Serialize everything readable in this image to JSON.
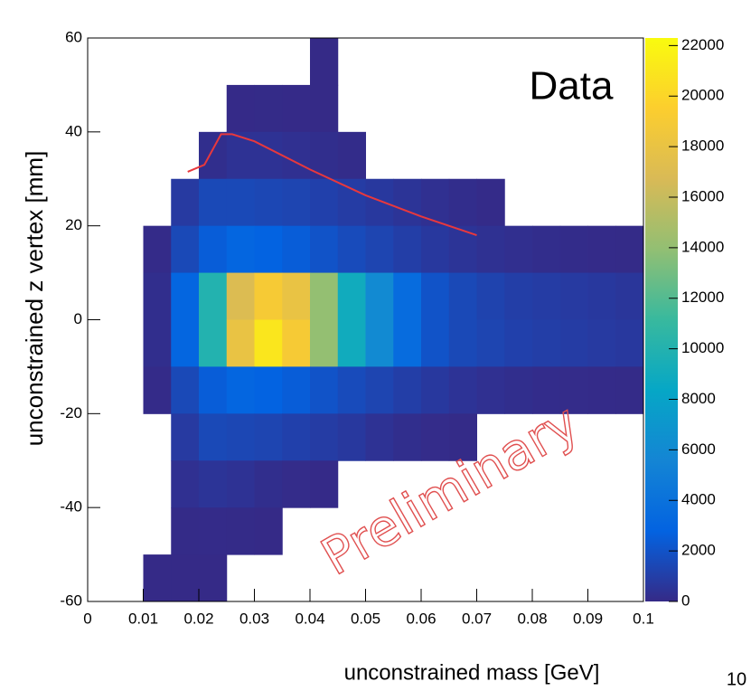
{
  "chart_data": {
    "type": "heatmap",
    "xlabel": "unconstrained mass [GeV]",
    "ylabel": "unconstrained z vertex [mm]",
    "annotation": "Data",
    "watermark": "Preliminary",
    "page_number": "10",
    "xlim": [
      0,
      0.1
    ],
    "xticks": [
      0,
      0.01,
      0.02,
      0.03,
      0.04,
      0.05,
      0.06,
      0.07,
      0.08,
      0.09,
      0.1
    ],
    "ylim": [
      -60,
      60
    ],
    "yticks": [
      -60,
      -40,
      -20,
      0,
      20,
      40,
      60
    ],
    "zlim": [
      0,
      22300
    ],
    "zticks": [
      0,
      2000,
      4000,
      6000,
      8000,
      10000,
      12000,
      14000,
      16000,
      18000,
      20000,
      22000
    ],
    "colormap": [
      "#352a87",
      "#0363e1",
      "#1485d4",
      "#06a7c6",
      "#38b99e",
      "#92bf73",
      "#d9ba56",
      "#fcce2e",
      "#f9fb0e"
    ],
    "xbins": [
      0,
      0.005,
      0.01,
      0.015,
      0.02,
      0.025,
      0.03,
      0.035,
      0.04,
      0.045,
      0.05,
      0.055,
      0.06,
      0.065,
      0.07,
      0.075,
      0.08,
      0.085,
      0.09,
      0.095,
      0.1
    ],
    "ybins": [
      60,
      50,
      40,
      30,
      20,
      10,
      0,
      -10,
      -20,
      -30,
      -40,
      -50,
      -60
    ],
    "z": [
      [
        0,
        0,
        0,
        0,
        0,
        0,
        0,
        0,
        1,
        0,
        0,
        0,
        0,
        0,
        0,
        0,
        0,
        0,
        0,
        0
      ],
      [
        0,
        0,
        0,
        0,
        0,
        20,
        30,
        20,
        10,
        0,
        0,
        0,
        0,
        0,
        0,
        0,
        0,
        0,
        0,
        0
      ],
      [
        0,
        0,
        0,
        0,
        200,
        400,
        400,
        300,
        200,
        100,
        0,
        0,
        0,
        0,
        0,
        0,
        0,
        0,
        0,
        0
      ],
      [
        0,
        0,
        0,
        800,
        1500,
        1500,
        1400,
        1300,
        1100,
        900,
        700,
        500,
        300,
        150,
        50,
        0,
        0,
        0,
        0,
        0
      ],
      [
        0,
        0,
        50,
        1500,
        2500,
        3000,
        2800,
        2500,
        2000,
        1600,
        1300,
        1000,
        700,
        500,
        350,
        250,
        150,
        100,
        60,
        40
      ],
      [
        0,
        0,
        200,
        3000,
        10000,
        17000,
        19000,
        18000,
        14000,
        9000,
        6000,
        3500,
        2000,
        1500,
        1200,
        1000,
        900,
        800,
        700,
        600
      ],
      [
        0,
        0,
        200,
        3000,
        10000,
        18000,
        21000,
        19000,
        14000,
        9000,
        6000,
        3500,
        2000,
        1500,
        1300,
        1100,
        1000,
        900,
        800,
        700
      ],
      [
        0,
        0,
        50,
        1500,
        2500,
        3000,
        2800,
        2500,
        2000,
        1600,
        1300,
        1000,
        700,
        450,
        300,
        200,
        120,
        80,
        50,
        30
      ],
      [
        0,
        0,
        0,
        800,
        1500,
        1400,
        1300,
        1100,
        900,
        700,
        400,
        200,
        80,
        30,
        0,
        0,
        0,
        0,
        0,
        0
      ],
      [
        0,
        0,
        0,
        300,
        500,
        400,
        200,
        80,
        20,
        0,
        0,
        0,
        0,
        0,
        0,
        0,
        0,
        0,
        0,
        0
      ],
      [
        0,
        0,
        0,
        40,
        60,
        30,
        10,
        0,
        0,
        0,
        0,
        0,
        0,
        0,
        0,
        0,
        0,
        0,
        0,
        0
      ],
      [
        0,
        0,
        5,
        10,
        5,
        0,
        0,
        0,
        0,
        0,
        0,
        0,
        0,
        0,
        0,
        0,
        0,
        0,
        0,
        0
      ]
    ],
    "curve": {
      "color": "#e8383d",
      "x": [
        0.018,
        0.021,
        0.024,
        0.026,
        0.03,
        0.04,
        0.05,
        0.06,
        0.07
      ],
      "y": [
        31.5,
        33,
        39.5,
        39.5,
        38,
        32,
        26.5,
        22,
        18
      ]
    }
  }
}
